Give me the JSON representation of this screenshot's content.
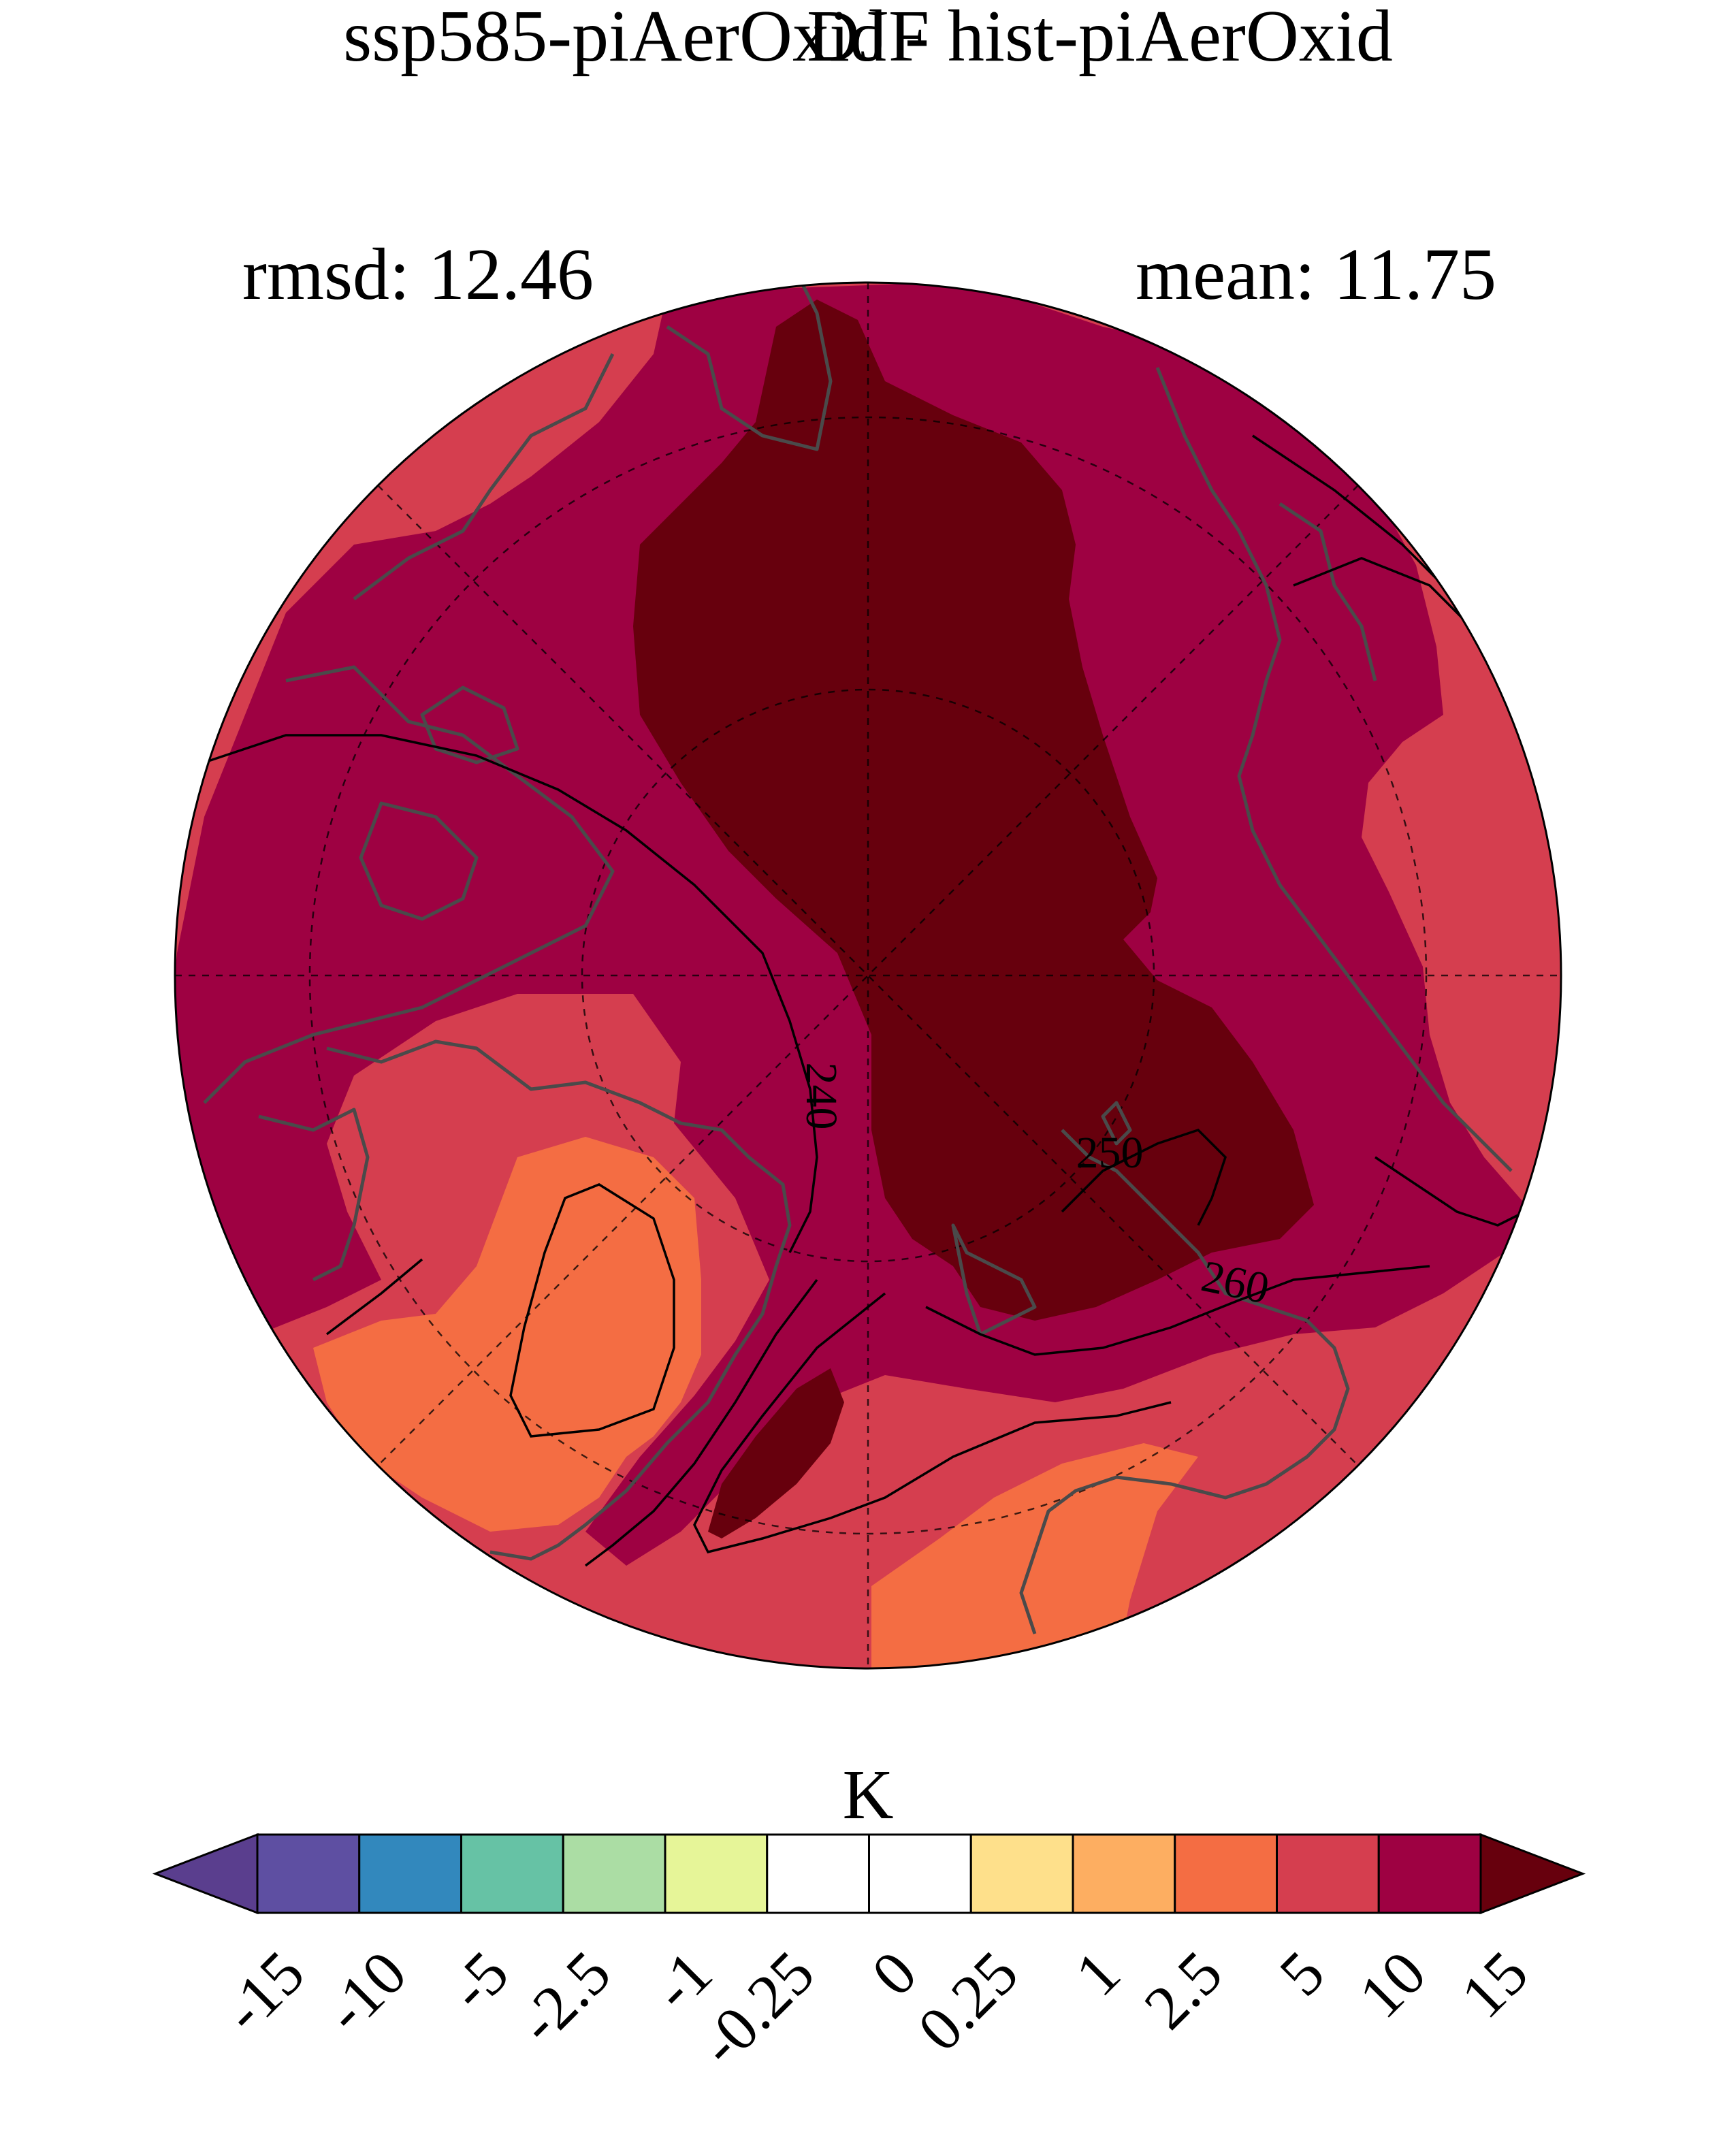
{
  "title": "ssp585-piAerOxid - hist-piAerOxid",
  "season": "DJF",
  "rmsd_text": "rmsd: 12.46",
  "mean_text": "mean: 11.75",
  "colorbar": {
    "unit": "K",
    "levels": [
      "-15",
      "-10",
      "-5",
      "-2.5",
      "-1",
      "-0.25",
      "0",
      "0.25",
      "1",
      "2.5",
      "5",
      "10",
      "15"
    ],
    "colors": [
      "#5e4fa2",
      "#3288bd",
      "#66c2a5",
      "#abdda4",
      "#e6f598",
      "#ffffff",
      "#ffffff",
      "#fee08b",
      "#fdae61",
      "#f46d43",
      "#d53e4f",
      "#9e0142"
    ],
    "under_color": "#5a3e8e",
    "over_color": "#67000d"
  },
  "contours": {
    "labels": [
      "240",
      "250",
      "260"
    ]
  },
  "map": {
    "projection": "north-polar-stereographic",
    "fill_colors": {
      "5-10": "#d53e4f",
      "10-15": "#9e0142",
      "above-15": "#67000d",
      "2.5-5": "#f46d43"
    }
  }
}
